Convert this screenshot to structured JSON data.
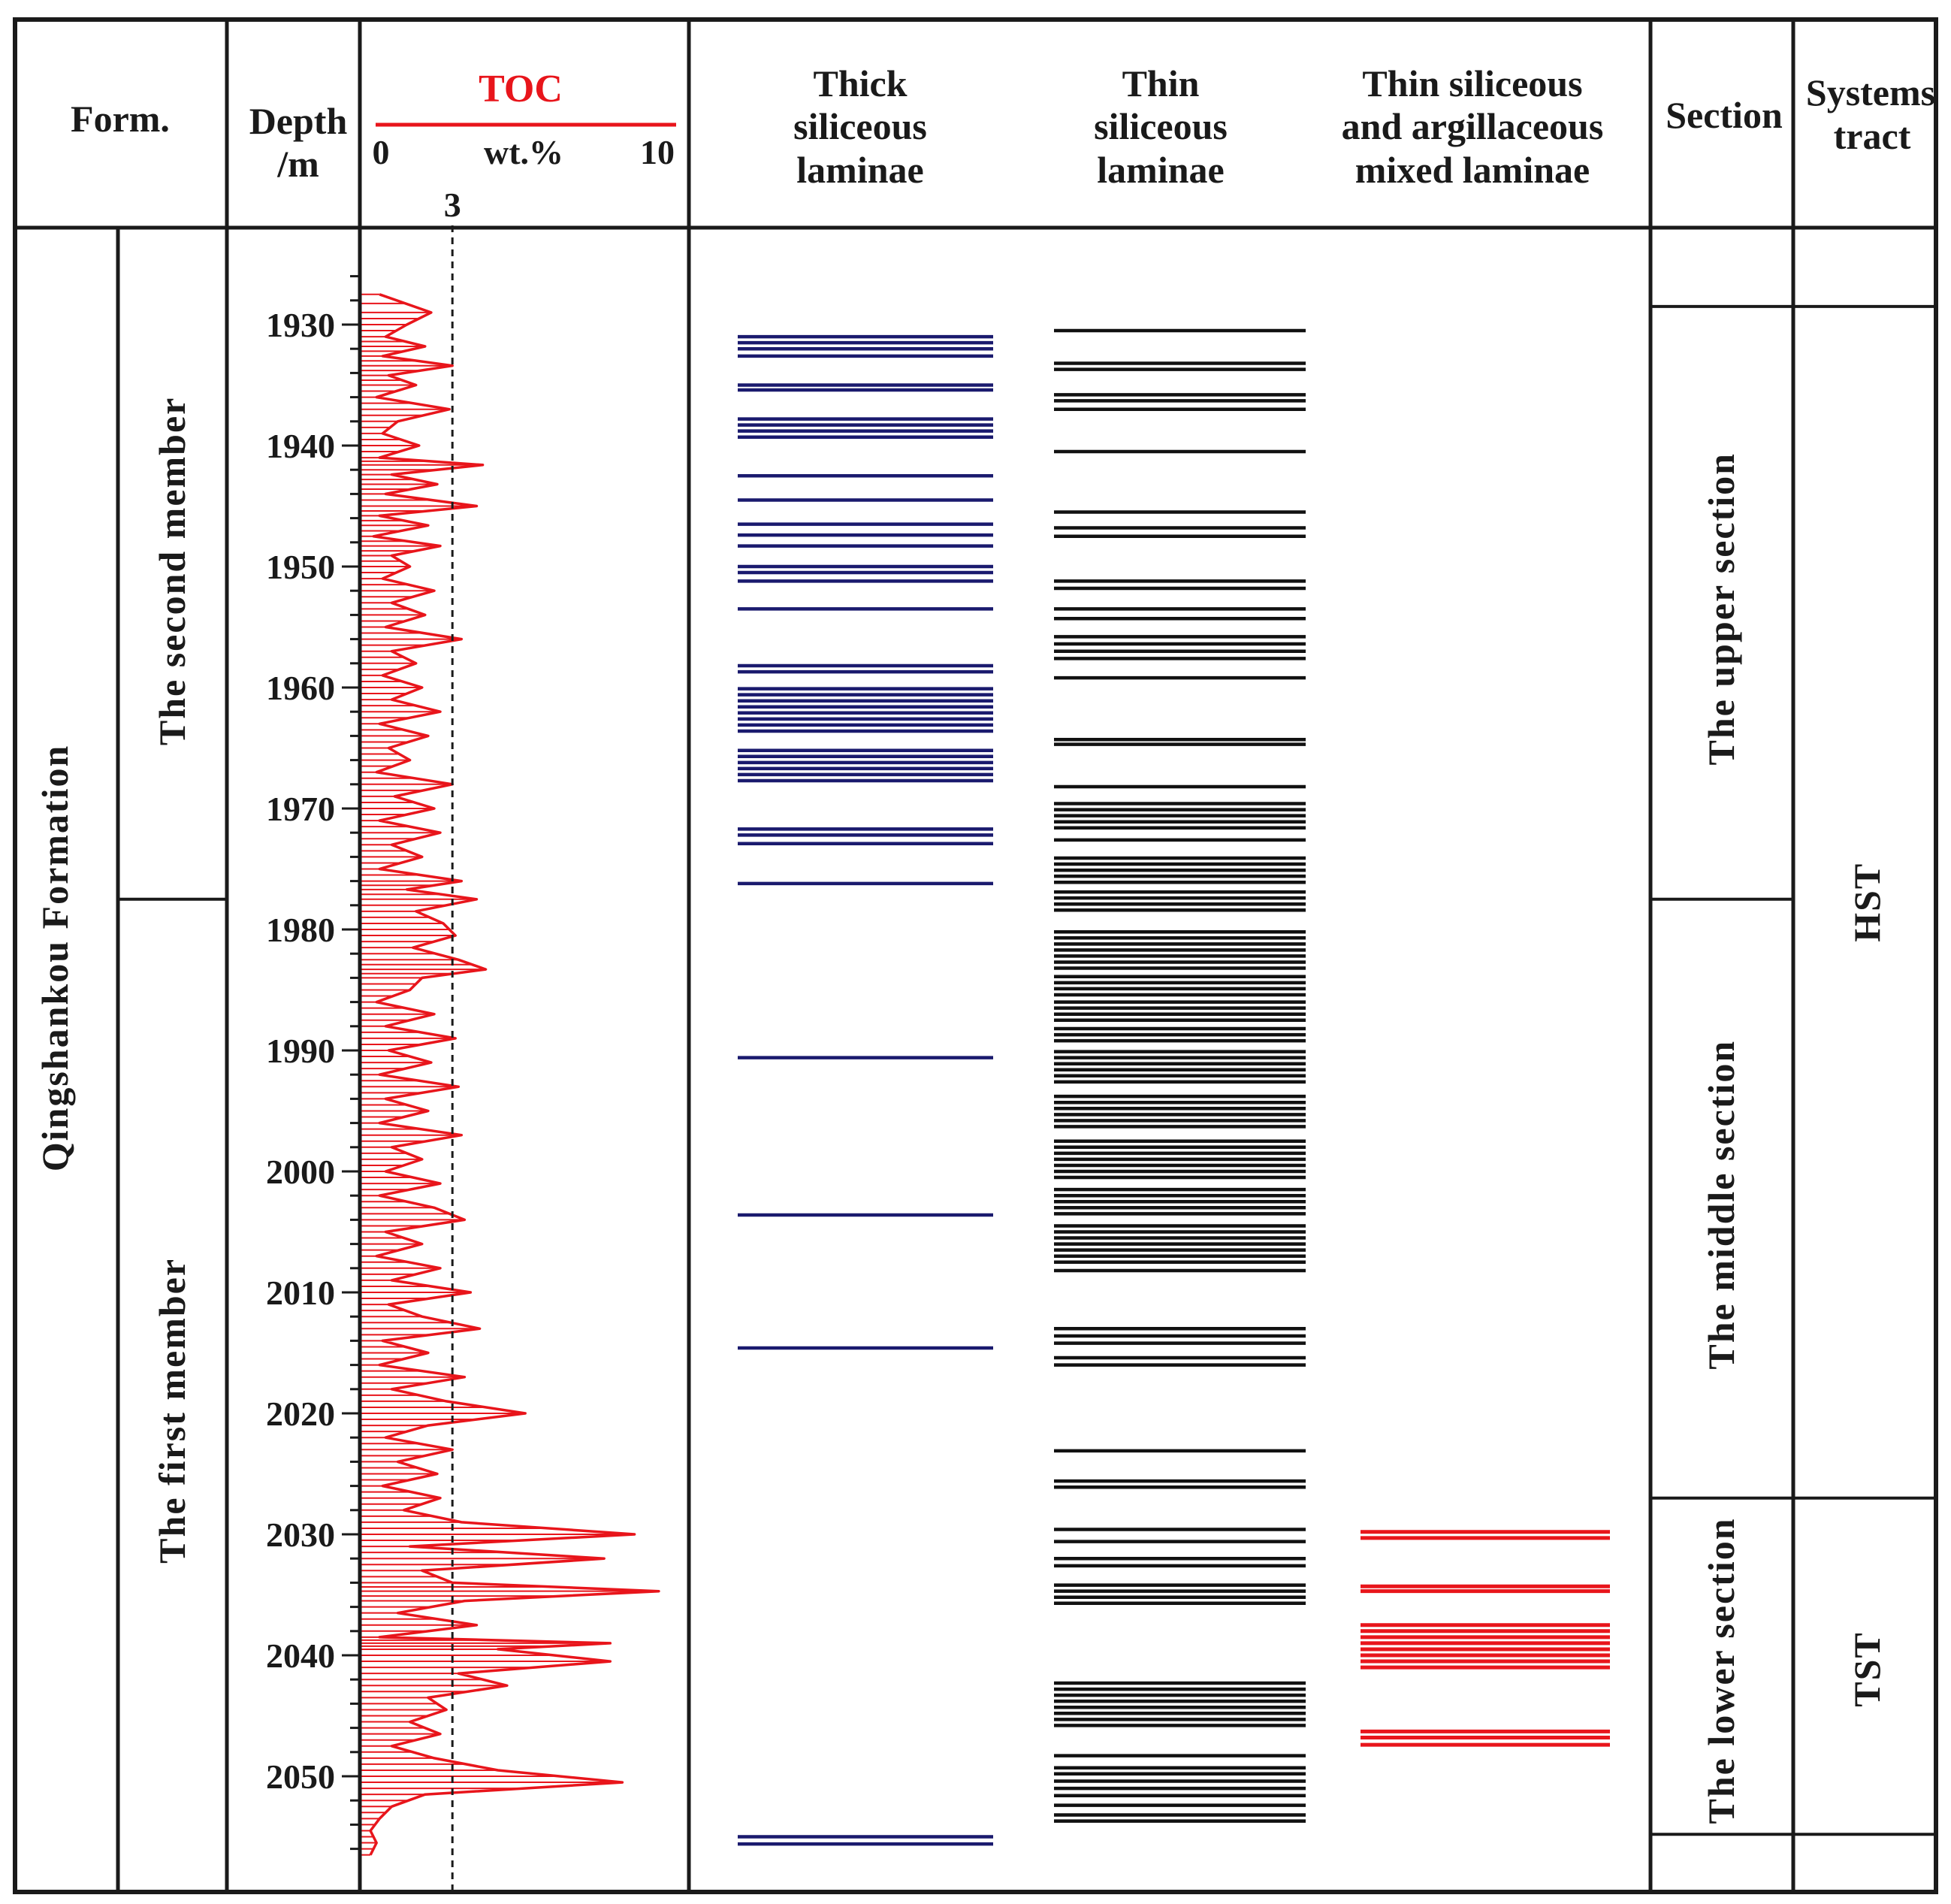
{
  "headers": {
    "form": "Form.",
    "depth_line1": "Depth",
    "depth_line2": "/m",
    "toc_title": "TOC",
    "toc_min": "0",
    "toc_unit": "wt.%",
    "toc_max": "10",
    "toc_threshold_label": "3",
    "thick_l1": "Thick",
    "thick_l2": "siliceous",
    "thick_l3": "laminae",
    "thin_l1": "Thin",
    "thin_l2": "siliceous",
    "thin_l3": "laminae",
    "mixed_l1": "Thin siliceous",
    "mixed_l2": "and argillaceous",
    "mixed_l3": "mixed laminae",
    "section": "Section",
    "systems_l1": "Systems",
    "systems_l2": "tract"
  },
  "formation": "Qingshankou Formation",
  "members": [
    {
      "name": "The second member"
    },
    {
      "name": "The first member"
    }
  ],
  "sections": [
    {
      "name": "The upper section"
    },
    {
      "name": "The middle section"
    },
    {
      "name": "The lower section"
    }
  ],
  "systems_tracts": [
    {
      "name": "HST"
    },
    {
      "name": "TST"
    }
  ],
  "colors": {
    "toc": "#e8151b",
    "thick": "#1a1a6e",
    "thin": "#111111",
    "mixed": "#e8151b",
    "frame": "#1a1a1a"
  },
  "chart_data": {
    "type": "depth_log",
    "title": "TOC",
    "xlabel": "wt.%",
    "ylabel": "Depth /m",
    "xlim": [
      0,
      10
    ],
    "ylim": [
      1925,
      2057
    ],
    "depth_ticks": [
      1930,
      1940,
      1950,
      1960,
      1970,
      1980,
      1990,
      2000,
      2010,
      2020,
      2030,
      2040,
      2050
    ],
    "threshold": 3,
    "member_boundary_depth": 1977.5,
    "section_boundaries": [
      1928.5,
      1977.5,
      2027,
      2054.8
    ],
    "systems_tract_boundary": 2027,
    "toc": {
      "depths": [
        1927.5,
        1929,
        1930,
        1931,
        1931.8,
        1932.6,
        1933.4,
        1934.2,
        1935,
        1936,
        1937,
        1938,
        1939,
        1940,
        1941,
        1941.6,
        1942.4,
        1943.2,
        1944,
        1945,
        1945.8,
        1946.6,
        1947.5,
        1948.3,
        1949.1,
        1950,
        1951,
        1952,
        1953,
        1954,
        1955,
        1956,
        1957,
        1958,
        1959,
        1960,
        1961,
        1962,
        1963,
        1964,
        1965,
        1966,
        1967,
        1968,
        1969,
        1970,
        1971,
        1972,
        1973,
        1974,
        1975,
        1976,
        1976.7,
        1977.5,
        1978.5,
        1979.5,
        1980.5,
        1981.5,
        1982.5,
        1983.3,
        1984,
        1985,
        1986,
        1987,
        1988,
        1989,
        1990,
        1991,
        1992,
        1993,
        1994,
        1995,
        1996,
        1997,
        1998,
        1999,
        2000,
        2001,
        2002,
        2003,
        2004,
        2005,
        2006,
        2007,
        2008,
        2009,
        2010,
        2011,
        2012,
        2013,
        2014,
        2015,
        2016,
        2017,
        2018,
        2019,
        2020,
        2021,
        2022,
        2023,
        2024,
        2025,
        2026,
        2027,
        2028,
        2029,
        2030,
        2031,
        2032,
        2033,
        2034,
        2034.7,
        2035.5,
        2036.5,
        2037.5,
        2038.5,
        2039,
        2039.5,
        2040.5,
        2041.5,
        2042.5,
        2043.5,
        2044.5,
        2045.5,
        2046.5,
        2047.5,
        2048.5,
        2049.5,
        2050.5,
        2051.5,
        2052.5,
        2053.5,
        2054.5,
        2055.5,
        2056.5
      ],
      "values": [
        0.6,
        2.3,
        1.5,
        0.8,
        2.1,
        0.7,
        3.0,
        0.9,
        1.8,
        0.5,
        2.9,
        1.2,
        0.7,
        1.9,
        0.6,
        4.0,
        1.0,
        2.5,
        0.8,
        3.8,
        0.6,
        2.2,
        0.4,
        2.6,
        1.0,
        1.6,
        0.7,
        2.4,
        1.0,
        2.1,
        0.8,
        3.3,
        1.0,
        1.8,
        0.7,
        2.0,
        1.0,
        2.6,
        0.6,
        2.2,
        0.9,
        1.6,
        0.5,
        3.0,
        1.1,
        2.4,
        0.6,
        2.6,
        1.0,
        2.0,
        0.6,
        3.3,
        1.5,
        3.8,
        1.8,
        2.7,
        3.1,
        1.7,
        3.2,
        4.1,
        2.0,
        1.6,
        0.5,
        2.4,
        0.8,
        3.1,
        0.9,
        2.3,
        0.6,
        3.2,
        0.8,
        2.2,
        0.6,
        3.3,
        1.0,
        2.0,
        0.8,
        2.6,
        0.6,
        2.4,
        3.4,
        0.8,
        2.0,
        0.5,
        2.6,
        1.0,
        3.6,
        0.9,
        2.0,
        3.9,
        0.7,
        2.2,
        0.6,
        3.4,
        1.0,
        2.8,
        5.4,
        2.2,
        0.8,
        3.0,
        1.2,
        2.5,
        0.7,
        2.6,
        1.4,
        3.3,
        9.0,
        1.6,
        8.0,
        2.0,
        3.0,
        9.8,
        3.4,
        1.2,
        3.8,
        0.6,
        8.2,
        4.5,
        8.2,
        3.2,
        4.8,
        2.2,
        2.8,
        1.6,
        2.6,
        1.0,
        2.4,
        4.5,
        8.6,
        2.1,
        1.0,
        0.6,
        0.3,
        0.5,
        0.3
      ]
    },
    "thick_siliceous_laminae": [
      1931,
      1931.5,
      1932,
      1932.6,
      1935,
      1935.4,
      1937.8,
      1938.3,
      1938.8,
      1939.3,
      1942.5,
      1944.5,
      1946.5,
      1947.4,
      1948.3,
      1950,
      1950.5,
      1951.2,
      1953.5,
      1958.2,
      1958.7,
      1960.1,
      1960.6,
      1961.1,
      1961.6,
      1962.1,
      1962.6,
      1963.1,
      1963.6,
      1965.2,
      1965.7,
      1966.2,
      1966.7,
      1967.2,
      1967.7,
      1971.7,
      1972.2,
      1972.9,
      1976.2,
      1990.6,
      2003.6,
      2014.6,
      2055,
      2055.6
    ],
    "thin_siliceous_laminae": [
      1930.5,
      1933.2,
      1933.7,
      1935.8,
      1936.3,
      1937,
      1940.5,
      1945.5,
      1946.8,
      1947.5,
      1951.2,
      1951.8,
      1953.5,
      1954.3,
      1955.8,
      1956.4,
      1957,
      1957.6,
      1959.2,
      1964.3,
      1964.7,
      1968.2,
      1969.6,
      1970.1,
      1970.6,
      1971.1,
      1971.6,
      1972.6,
      1974.1,
      1974.6,
      1975.1,
      1975.6,
      1976.1,
      1976.9,
      1977.4,
      1977.9,
      1978.4,
      1980.2,
      1980.7,
      1981.2,
      1981.7,
      1982.2,
      1982.7,
      1983.2,
      1983.9,
      1984.4,
      1984.9,
      1985.4,
      1986,
      1986.5,
      1987,
      1987.5,
      1988.2,
      1988.7,
      1989.2,
      1990.1,
      1990.6,
      1991.1,
      1991.6,
      1992.1,
      1992.6,
      1993.8,
      1994.3,
      1994.8,
      1995.3,
      1995.8,
      1996.3,
      1997.5,
      1998,
      1998.5,
      1999,
      1999.5,
      2000,
      2000.5,
      2001.5,
      2002,
      2002.5,
      2003,
      2003.5,
      2004.5,
      2005,
      2005.5,
      2006,
      2006.5,
      2007,
      2007.5,
      2008.2,
      2013,
      2013.6,
      2014.2,
      2015.4,
      2016,
      2023.1,
      2025.6,
      2026.1,
      2029.6,
      2030.6,
      2032,
      2032.6,
      2034.2,
      2034.7,
      2035.2,
      2035.7,
      2042.3,
      2042.8,
      2043.3,
      2043.8,
      2044.3,
      2044.8,
      2045.3,
      2045.8,
      2048.3,
      2049.3,
      2049.8,
      2050.4,
      2051,
      2051.6,
      2052.4,
      2053.2,
      2053.7
    ],
    "thin_siliceous_argillaceous_mixed_laminae": [
      2029.8,
      2030.3,
      2034.3,
      2034.7,
      2037.5,
      2038,
      2038.5,
      2039,
      2039.5,
      2040,
      2040.5,
      2041,
      2046.3,
      2046.8,
      2047.4
    ]
  }
}
